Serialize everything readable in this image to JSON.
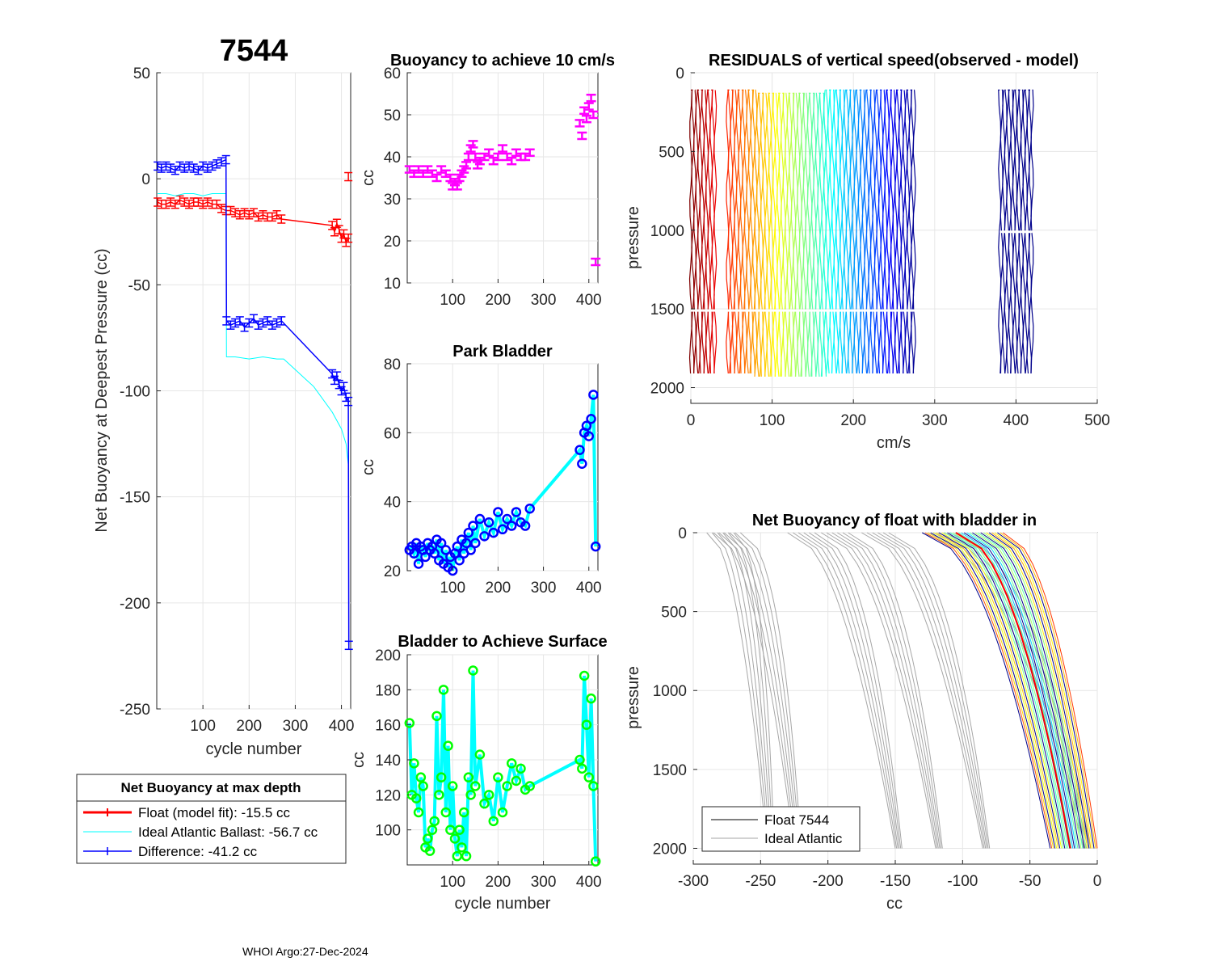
{
  "page": {
    "float_id": "7544",
    "footer": "WHOI Argo:27-Dec-2024"
  },
  "colors": {
    "red": "#ff0000",
    "blue": "#0000ff",
    "cyan": "#00ffff",
    "magenta": "#ff00ff",
    "green": "#00ff00",
    "gray": "#a6a6a6",
    "navy": "#00008b"
  },
  "chart_data": [
    {
      "id": "net_buoyancy",
      "type": "line",
      "title": "7544",
      "xlabel": "cycle number",
      "ylabel": "Net Buoyancy at Deepest Pressure (cc)",
      "xlim": [
        0,
        420
      ],
      "ylim": [
        -250,
        50
      ],
      "xticks": [
        100,
        200,
        300,
        400
      ],
      "yticks": [
        50,
        0,
        -50,
        -100,
        -150,
        -200,
        -250
      ],
      "grid": true,
      "legend": {
        "title": "Net Buoyancy at max depth",
        "entries": [
          "Float (model fit): -15.5 cc",
          "Ideal Atlantic Ballast: -56.7 cc",
          "Difference: -41.2 cc"
        ]
      },
      "series": [
        {
          "name": "Float (model fit)",
          "color": "#ff0000",
          "errorbars": true,
          "x": [
            2,
            10,
            20,
            30,
            40,
            50,
            60,
            70,
            80,
            90,
            100,
            110,
            120,
            130,
            140,
            150,
            160,
            170,
            180,
            190,
            200,
            210,
            220,
            230,
            240,
            250,
            260,
            270,
            380,
            385,
            390,
            395,
            400,
            405,
            410,
            415
          ],
          "y": [
            -11,
            -12,
            -12,
            -11,
            -12,
            -10,
            -11,
            -12,
            -11,
            -11,
            -12,
            -11,
            -12,
            -12,
            -14,
            -15,
            -15,
            -16,
            -17,
            -16,
            -17,
            -16,
            -18,
            -17,
            -18,
            -18,
            -17,
            -19,
            -22,
            -25,
            -21,
            -24,
            -28,
            -26,
            -30,
            -28
          ]
        },
        {
          "name": "Ideal Atlantic Ballast",
          "color": "#00ffff",
          "errorbars": false,
          "x": [
            2,
            20,
            40,
            60,
            80,
            100,
            120,
            140,
            150,
            151,
            170,
            200,
            230,
            260,
            275,
            300,
            340,
            380,
            400,
            410,
            415
          ],
          "y": [
            -7,
            -7,
            -8,
            -7,
            -7,
            -8,
            -7,
            -7,
            -7,
            -84,
            -84,
            -85,
            -84,
            -85,
            -85,
            -90,
            -98,
            -110,
            -118,
            -125,
            -135
          ]
        },
        {
          "name": "Difference",
          "color": "#0000ff",
          "errorbars": true,
          "x": [
            2,
            10,
            20,
            30,
            40,
            50,
            60,
            70,
            80,
            90,
            100,
            110,
            120,
            130,
            140,
            150,
            151,
            160,
            170,
            180,
            190,
            200,
            210,
            220,
            230,
            240,
            250,
            260,
            270,
            380,
            385,
            390,
            395,
            400,
            405,
            410,
            415,
            416
          ],
          "y": [
            6,
            5,
            6,
            5,
            4,
            6,
            5,
            6,
            5,
            4,
            6,
            5,
            6,
            7,
            8,
            9,
            -67,
            -69,
            -68,
            -67,
            -70,
            -68,
            -66,
            -69,
            -68,
            -67,
            -69,
            -68,
            -67,
            -92,
            -95,
            -93,
            -97,
            -100,
            -98,
            -103,
            -105,
            -220
          ]
        },
        {
          "name": "Float (red late)",
          "color": "#ff0000",
          "errorbars": true,
          "x": [
            415
          ],
          "y": [
            1
          ]
        }
      ]
    },
    {
      "id": "buoyancy_10cms",
      "type": "scatter",
      "title": "Buoyancy to achieve 10 cm/s",
      "ylabel": "cc",
      "xlim": [
        0,
        420
      ],
      "ylim": [
        10,
        60
      ],
      "xticks": [
        100,
        200,
        300,
        400
      ],
      "yticks": [
        60,
        50,
        40,
        30,
        20,
        10
      ],
      "series": [
        {
          "name": "buoyancy",
          "color": "#ff00ff",
          "x": [
            5,
            15,
            25,
            35,
            45,
            55,
            65,
            75,
            85,
            95,
            100,
            105,
            110,
            115,
            120,
            125,
            130,
            135,
            140,
            145,
            150,
            155,
            160,
            170,
            180,
            190,
            200,
            210,
            220,
            230,
            240,
            250,
            260,
            270,
            380,
            385,
            390,
            395,
            400,
            405,
            410,
            415
          ],
          "y": [
            37,
            36,
            37,
            36,
            37,
            36,
            35,
            37,
            36,
            35,
            33,
            34,
            33,
            35,
            36,
            37,
            38,
            40,
            42,
            43,
            40,
            38,
            39,
            40,
            41,
            39,
            40,
            42,
            40,
            39,
            41,
            40,
            40,
            41,
            48,
            45,
            51,
            49,
            52,
            54,
            50,
            15
          ]
        }
      ]
    },
    {
      "id": "park_bladder",
      "type": "line",
      "title": "Park Bladder",
      "ylabel": "cc",
      "xlim": [
        0,
        420
      ],
      "ylim": [
        20,
        80
      ],
      "xticks": [
        100,
        200,
        300,
        400
      ],
      "yticks": [
        80,
        60,
        40,
        20
      ],
      "series": [
        {
          "name": "park",
          "color": "#00ffff",
          "marker_color": "#0000ff",
          "x": [
            5,
            10,
            15,
            20,
            25,
            30,
            35,
            40,
            45,
            50,
            55,
            60,
            65,
            70,
            75,
            80,
            85,
            90,
            95,
            100,
            105,
            110,
            115,
            120,
            125,
            130,
            135,
            140,
            145,
            150,
            160,
            170,
            180,
            190,
            200,
            210,
            220,
            230,
            240,
            250,
            260,
            270,
            380,
            385,
            390,
            395,
            400,
            405,
            410,
            415
          ],
          "y": [
            26,
            27,
            25,
            28,
            22,
            27,
            26,
            24,
            28,
            26,
            27,
            25,
            29,
            23,
            28,
            22,
            26,
            21,
            24,
            20,
            25,
            27,
            23,
            29,
            25,
            28,
            31,
            26,
            33,
            28,
            35,
            30,
            34,
            31,
            37,
            32,
            35,
            33,
            37,
            34,
            33,
            38,
            55,
            51,
            60,
            62,
            59,
            64,
            71,
            27
          ]
        }
      ]
    },
    {
      "id": "bladder_surface",
      "type": "line",
      "title": "Bladder to Achieve Surface",
      "xlabel": "cycle number",
      "ylabel": "cc",
      "xlim": [
        0,
        420
      ],
      "ylim": [
        80,
        200
      ],
      "xticks": [
        100,
        200,
        300,
        400
      ],
      "yticks": [
        200,
        180,
        160,
        140,
        120,
        100
      ],
      "series": [
        {
          "name": "surface",
          "color": "#00ffff",
          "marker_color": "#00ff00",
          "x": [
            5,
            10,
            15,
            20,
            25,
            30,
            35,
            40,
            45,
            50,
            55,
            60,
            65,
            70,
            75,
            80,
            85,
            90,
            95,
            100,
            105,
            110,
            115,
            120,
            125,
            130,
            135,
            140,
            145,
            150,
            160,
            170,
            180,
            190,
            200,
            210,
            220,
            230,
            240,
            250,
            260,
            270,
            380,
            385,
            390,
            395,
            400,
            405,
            410,
            415
          ],
          "y": [
            161,
            120,
            138,
            118,
            110,
            130,
            125,
            90,
            95,
            88,
            100,
            105,
            165,
            120,
            130,
            180,
            110,
            148,
            100,
            125,
            95,
            85,
            100,
            90,
            110,
            85,
            130,
            120,
            191,
            125,
            143,
            115,
            120,
            105,
            130,
            110,
            125,
            138,
            128,
            135,
            123,
            125,
            140,
            135,
            188,
            160,
            130,
            175,
            125,
            82
          ]
        }
      ]
    },
    {
      "id": "residuals",
      "type": "line",
      "title": "RESIDUALS of vertical speed(observed - model)",
      "xlabel": "cm/s",
      "ylabel": "pressure",
      "xlim": [
        0,
        500
      ],
      "ylim": [
        0,
        2100
      ],
      "xticks": [
        0,
        100,
        200,
        300,
        400,
        500
      ],
      "yticks": [
        0,
        500,
        1000,
        1500,
        2000
      ],
      "groups": [
        {
          "x_start": 0,
          "x_end": 30,
          "p_top": 110,
          "p_bottom": 2000
        },
        {
          "x_start": 45,
          "x_end": 80,
          "p_top": 110,
          "p_bottom": 2000
        },
        {
          "x_start": 80,
          "x_end": 165,
          "p_top": 130,
          "p_bottom": 2000
        },
        {
          "x_start": 165,
          "x_end": 275,
          "p_top": 110,
          "p_bottom": 2000
        },
        {
          "x_start": 380,
          "x_end": 420,
          "p_top": 110,
          "p_bottom": 2000
        }
      ]
    },
    {
      "id": "net_buoyancy_profile",
      "type": "line",
      "title": "Net Buoyancy of float with bladder in",
      "xlabel": "cc",
      "ylabel": "pressure",
      "xlim": [
        -300,
        0
      ],
      "ylim": [
        0,
        2100
      ],
      "xticks": [
        -300,
        -250,
        -200,
        -150,
        -100,
        -50,
        0
      ],
      "yticks": [
        0,
        500,
        1000,
        1500,
        2000
      ],
      "legend": {
        "entries": [
          "Float 7544",
          "Ideal Atlantic"
        ]
      },
      "gray_bundles": [
        {
          "x_surface": -290,
          "x_2000": -245
        },
        {
          "x_surface": -285,
          "x_2000": -225
        },
        {
          "x_surface": -230,
          "x_2000": -150
        },
        {
          "x_surface": -205,
          "x_2000": -120
        },
        {
          "x_surface": -175,
          "x_2000": -85
        },
        {
          "x_surface": -130,
          "x_2000": -10
        }
      ],
      "color_bundle": {
        "x_surface_min": -130,
        "x_surface_max": -70,
        "x_2000_min": -35,
        "x_2000_max": 0
      }
    }
  ]
}
